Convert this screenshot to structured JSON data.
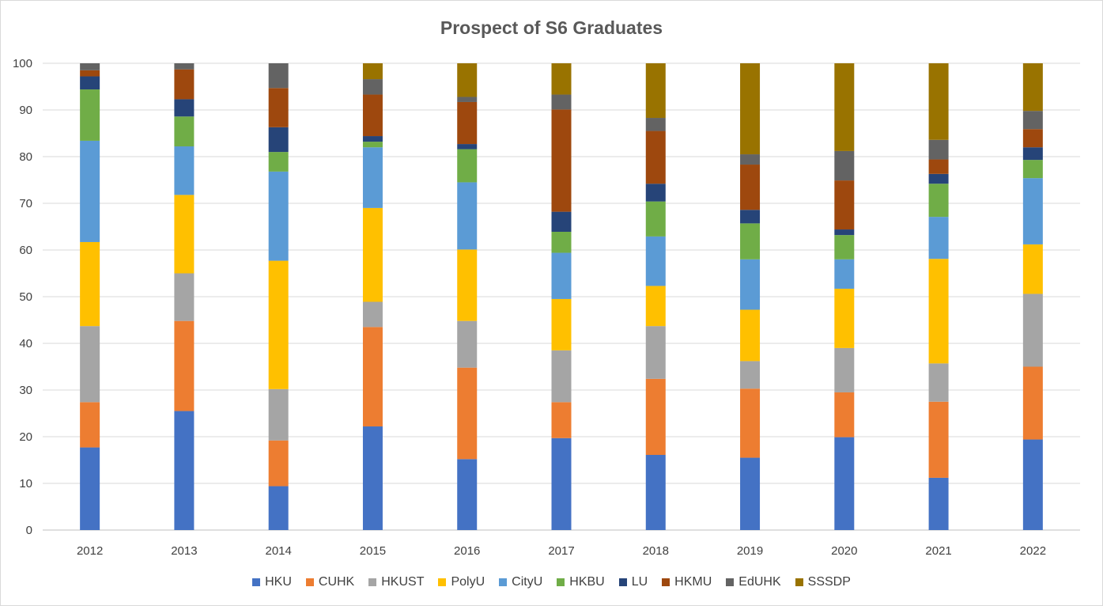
{
  "chart_data": {
    "type": "bar",
    "stacked": true,
    "title": "Prospect of S6 Graduates",
    "xlabel": "",
    "ylabel": "",
    "ylim": [
      0,
      100
    ],
    "yticks": [
      0,
      10,
      20,
      30,
      40,
      50,
      60,
      70,
      80,
      90,
      100
    ],
    "grid": true,
    "legend_position": "bottom",
    "categories": [
      "2012",
      "2013",
      "2014",
      "2015",
      "2016",
      "2017",
      "2018",
      "2019",
      "2020",
      "2021",
      "2022"
    ],
    "series": [
      {
        "name": "HKU",
        "color": "#4472C4",
        "values": [
          17.7,
          25.5,
          9.4,
          22.2,
          15.2,
          19.7,
          16.1,
          15.5,
          19.9,
          11.2,
          19.4
        ]
      },
      {
        "name": "CUHK",
        "color": "#ED7D31",
        "values": [
          9.7,
          19.3,
          9.8,
          21.3,
          19.6,
          7.7,
          16.3,
          14.8,
          9.6,
          16.3,
          15.6
        ]
      },
      {
        "name": "HKUST",
        "color": "#A5A5A5",
        "values": [
          16.3,
          10.2,
          11.0,
          5.4,
          10.0,
          11.1,
          11.3,
          5.9,
          9.5,
          8.2,
          15.6
        ]
      },
      {
        "name": "PolyU",
        "color": "#FFC000",
        "values": [
          18.0,
          16.8,
          27.5,
          20.1,
          15.3,
          11.0,
          8.6,
          11.0,
          12.7,
          22.4,
          10.6
        ]
      },
      {
        "name": "CityU",
        "color": "#5B9BD5",
        "values": [
          21.7,
          10.4,
          19.1,
          13.0,
          14.4,
          9.9,
          10.6,
          10.8,
          6.3,
          9.0,
          14.2
        ]
      },
      {
        "name": "HKBU",
        "color": "#70AD47",
        "values": [
          11.0,
          6.4,
          4.2,
          1.2,
          7.1,
          4.5,
          7.5,
          7.7,
          5.2,
          7.1,
          3.9
        ]
      },
      {
        "name": "LU",
        "color": "#264478",
        "values": [
          2.8,
          3.7,
          5.3,
          1.2,
          1.1,
          4.3,
          3.8,
          2.9,
          1.2,
          2.1,
          2.7
        ]
      },
      {
        "name": "HKMU",
        "color": "#9E480E",
        "values": [
          1.3,
          6.4,
          8.4,
          8.9,
          9.0,
          21.9,
          11.3,
          9.7,
          10.5,
          3.1,
          3.9
        ]
      },
      {
        "name": "EdUHK",
        "color": "#636363",
        "values": [
          1.5,
          1.3,
          5.3,
          3.3,
          1.1,
          3.2,
          2.8,
          2.2,
          6.3,
          4.2,
          3.9
        ]
      },
      {
        "name": "SSSDP",
        "color": "#997300",
        "values": [
          0,
          0,
          0,
          3.4,
          7.2,
          6.7,
          11.7,
          19.5,
          18.8,
          16.4,
          10.2
        ]
      }
    ]
  }
}
